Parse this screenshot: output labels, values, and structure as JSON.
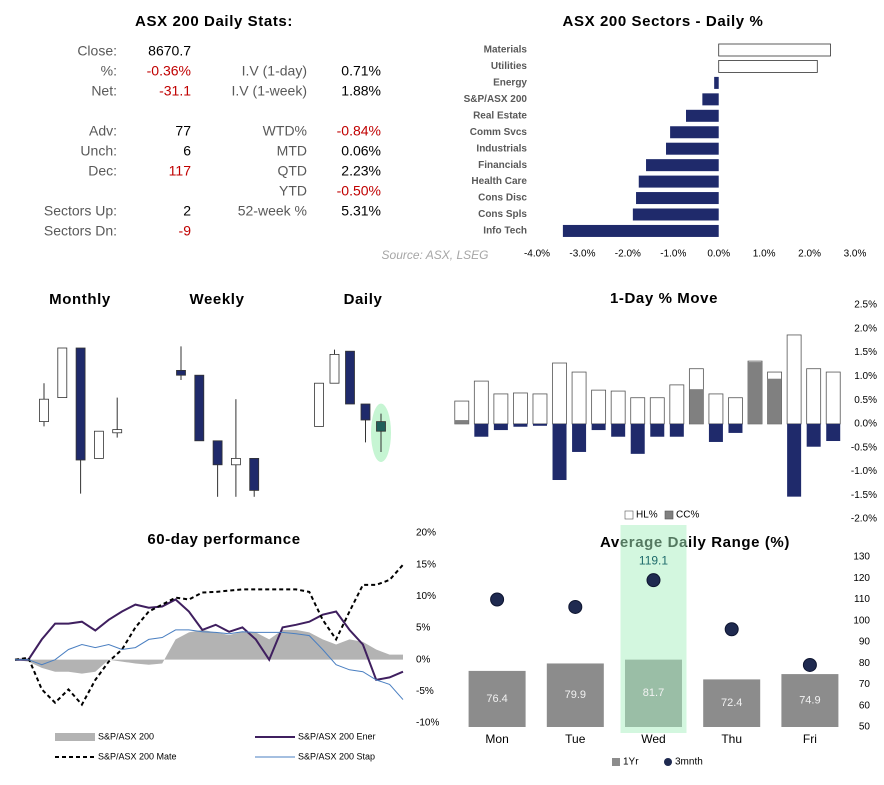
{
  "stats": {
    "title": "ASX 200 Daily Stats:",
    "left": [
      {
        "label": "Close:",
        "value": "8670.7"
      },
      {
        "label": "%:",
        "value": "-0.36%",
        "color": "#c00000"
      },
      {
        "label": "Net:",
        "value": "-31.1",
        "color": "#c00000"
      },
      {
        "label": "Adv:",
        "value": "77"
      },
      {
        "label": "Unch:",
        "value": "6"
      },
      {
        "label": "Dec:",
        "value": "117",
        "color": "#c00000"
      },
      {
        "label": "Sectors Up:",
        "value": "2"
      },
      {
        "label": "Sectors Dn:",
        "value": "-9",
        "color": "#c00000"
      }
    ],
    "right": [
      {
        "label": "I.V (1-day)",
        "value": "0.71%"
      },
      {
        "label": "I.V (1-week)",
        "value": "1.88%"
      },
      {
        "label": "WTD%",
        "value": "-0.84%",
        "color": "#c00000"
      },
      {
        "label": "MTD",
        "value": "0.06%"
      },
      {
        "label": "QTD",
        "value": "2.23%"
      },
      {
        "label": "YTD",
        "value": "-0.50%",
        "color": "#c00000"
      },
      {
        "label": "52-week %",
        "value": "5.31%"
      }
    ]
  },
  "source": "Source: ASX, LSEG",
  "chart_data": [
    {
      "type": "hbar",
      "title": "ASX 200 Sectors - Daily %",
      "categories": [
        "Materials",
        "Utilities",
        "Energy",
        "S&P/ASX 200",
        "Real Estate",
        "Comm Svcs",
        "Industrials",
        "Financials",
        "Health Care",
        "Cons Disc",
        "Cons Spls",
        "Info Tech"
      ],
      "values": [
        2.46,
        2.17,
        -0.1,
        -0.36,
        -0.72,
        -1.07,
        -1.16,
        -1.6,
        -1.76,
        -1.82,
        -1.89,
        -3.43
      ],
      "color": "#1f2a6b",
      "positive_color": "#ffffff",
      "xlim": [
        -4,
        3
      ],
      "xticks": [
        {
          "value": -4,
          "label": "-4.0%"
        },
        {
          "value": -3,
          "label": "-3.0%"
        },
        {
          "value": -2,
          "label": "-2.0%"
        },
        {
          "value": -1,
          "label": "-1.0%"
        },
        {
          "value": 0,
          "label": "0.0%"
        },
        {
          "value": 1,
          "label": "1.0%"
        },
        {
          "value": 2,
          "label": "2.0%"
        },
        {
          "value": 3,
          "label": "3.0%"
        }
      ]
    },
    {
      "type": "candlestick",
      "title": "Monthly",
      "open": [
        49,
        64,
        95,
        26,
        42
      ],
      "high": [
        73,
        95,
        95,
        43,
        64
      ],
      "low": [
        46,
        64,
        4,
        26,
        39
      ],
      "close": [
        63,
        95,
        25,
        43,
        44
      ],
      "up_color": "#ffffff",
      "down_color": "#1f2a6b",
      "ylim": [
        0,
        100
      ]
    },
    {
      "type": "candlestick",
      "title": "Weekly",
      "open": [
        81,
        78,
        37,
        22,
        26
      ],
      "high": [
        96,
        78,
        37,
        63,
        26
      ],
      "low": [
        75,
        37,
        2,
        2,
        2
      ],
      "close": [
        78,
        37,
        22,
        26,
        6
      ],
      "up_color": "#ffffff",
      "down_color": "#1f2a6b",
      "ylim": [
        0,
        100
      ]
    },
    {
      "type": "candlestick",
      "title": "Daily",
      "open": [
        46,
        73,
        93,
        60,
        49
      ],
      "high": [
        73,
        94,
        93,
        60,
        54
      ],
      "low": [
        46,
        73,
        60,
        36,
        30
      ],
      "close": [
        73,
        91,
        60,
        50,
        43
      ],
      "up_color": "#ffffff",
      "down_color": "#1f2a6b",
      "highlight_color": "#c6f5d3",
      "highlight_fill": "#1e5f5a",
      "ylim": [
        0,
        100
      ]
    },
    {
      "type": "bar",
      "title": "1-Day % Move",
      "categories": [
        null,
        null,
        null,
        null,
        null,
        null,
        null,
        null,
        null,
        null,
        null,
        null,
        null,
        null,
        null,
        null,
        null,
        null,
        null,
        null
      ],
      "series": [
        {
          "name": "HL%",
          "color": "#ffffff",
          "values": [
            0.48,
            0.9,
            0.63,
            0.65,
            0.63,
            1.28,
            1.09,
            0.71,
            0.69,
            0.55,
            0.55,
            0.82,
            1.16,
            0.63,
            0.55,
            1.32,
            1.09,
            1.87,
            1.16,
            1.09
          ]
        },
        {
          "name": "CC%",
          "color": "#808080",
          "negative_color": "#1f2a6b",
          "values": [
            0.08,
            -0.27,
            -0.13,
            -0.06,
            -0.04,
            -1.18,
            -0.59,
            -0.13,
            -0.27,
            -0.63,
            -0.27,
            -0.27,
            0.73,
            -0.38,
            -0.19,
            1.3,
            0.95,
            -1.53,
            -0.48,
            -0.36
          ]
        }
      ],
      "ylim": [
        -2,
        2.5
      ],
      "yticks": [
        {
          "value": 2.5,
          "label": "2.5%"
        },
        {
          "value": 2,
          "label": "2.0%"
        },
        {
          "value": 1.5,
          "label": "1.5%"
        },
        {
          "value": 1,
          "label": "1.0%"
        },
        {
          "value": 0.5,
          "label": "0.5%"
        },
        {
          "value": 0,
          "label": "0.0%"
        },
        {
          "value": -0.5,
          "label": "-0.5%"
        },
        {
          "value": -1,
          "label": "-1.0%"
        },
        {
          "value": -1.5,
          "label": "-1.5%"
        },
        {
          "value": -2,
          "label": "-2.0%"
        }
      ]
    },
    {
      "type": "line",
      "title": "60-day performance",
      "categories": [
        null,
        null,
        null,
        null,
        null,
        null,
        null,
        null,
        null,
        null,
        null,
        null,
        null,
        null,
        null,
        null,
        null,
        null,
        null,
        null,
        null,
        null,
        null,
        null,
        null,
        null,
        null,
        null,
        null,
        null
      ],
      "series": [
        {
          "name": "S&P/ASX 200",
          "color": "#b3b3b3",
          "style": "area",
          "values": [
            0,
            -0.3,
            -1.3,
            -1.9,
            -1.9,
            -2.2,
            -1.9,
            0,
            -0.3,
            -0.6,
            -0.8,
            -0.6,
            3.2,
            4.3,
            4.7,
            4.3,
            3.9,
            4.4,
            4.3,
            3.2,
            4.7,
            4.7,
            4.3,
            3.2,
            2.4,
            3.2,
            2.8,
            1.6,
            0.8,
            0.8
          ]
        },
        {
          "name": "S&P/ASX 200 Ener",
          "color": "#3f1f5f",
          "style": "solid",
          "values": [
            0,
            0,
            3.2,
            5.7,
            5.7,
            6.0,
            4.6,
            6.3,
            7.6,
            8.7,
            8.2,
            8.4,
            9.5,
            7.6,
            4.7,
            5.5,
            4.4,
            5.1,
            3.2,
            0,
            5.1,
            5.5,
            6.0,
            7.1,
            7.6,
            4.7,
            2.4,
            -3.2,
            -2.8,
            -1.9
          ]
        },
        {
          "name": "S&P/ASX 200 Mate",
          "color": "#000000",
          "style": "dashed",
          "values": [
            0,
            0.3,
            -4.7,
            -6.8,
            -4.7,
            -7.1,
            -3.2,
            -0.3,
            1.6,
            5.1,
            7.6,
            8.7,
            9.8,
            9.5,
            10.6,
            10.7,
            10.9,
            11.1,
            11.1,
            11.1,
            11.1,
            11.1,
            10.7,
            6.3,
            3.2,
            7.6,
            11.8,
            11.8,
            12.6,
            15.0
          ]
        },
        {
          "name": "S&P/ASX 200 Stap",
          "color": "#4a7fc1",
          "style": "thin",
          "values": [
            0,
            0,
            -0.8,
            0,
            1.6,
            2.4,
            1.9,
            2.4,
            1.6,
            1.9,
            3.2,
            3.5,
            4.7,
            4.7,
            4.4,
            4.3,
            4.1,
            4.4,
            4.3,
            4.3,
            4.3,
            4.1,
            3.8,
            1.6,
            -0.8,
            -1.6,
            -1.9,
            -3.2,
            -3.9,
            -6.3
          ]
        }
      ],
      "ylim": [
        -10,
        20
      ],
      "yticks": [
        {
          "value": 20,
          "label": "20%"
        },
        {
          "value": 15,
          "label": "15%"
        },
        {
          "value": 10,
          "label": "10%"
        },
        {
          "value": 5,
          "label": "5%"
        },
        {
          "value": 0,
          "label": "0%"
        },
        {
          "value": -5,
          "label": "-5%"
        },
        {
          "value": -10,
          "label": "-10%"
        }
      ]
    },
    {
      "type": "combo",
      "title": "Average Daily Range (%)",
      "categories": [
        "Mon",
        "Tue",
        "Wed",
        "Thu",
        "Fri"
      ],
      "series": [
        {
          "name": "1Yr",
          "type": "bar",
          "color": "#8c8c8c",
          "data_labels": true,
          "values": [
            76.4,
            79.9,
            81.7,
            72.4,
            74.9
          ]
        },
        {
          "name": "3mnth",
          "type": "scatter",
          "color": "#1f2a50",
          "values": [
            110,
            106.5,
            119.1,
            96,
            79.2
          ],
          "value_labels": [
            null,
            null,
            "119.1",
            null,
            null
          ]
        }
      ],
      "highlight": "Wed",
      "highlight_color": "#a8f0bf",
      "ylim": [
        50,
        130
      ],
      "yticks": [
        130,
        120,
        110,
        100,
        90,
        80,
        70,
        60,
        50
      ]
    }
  ]
}
